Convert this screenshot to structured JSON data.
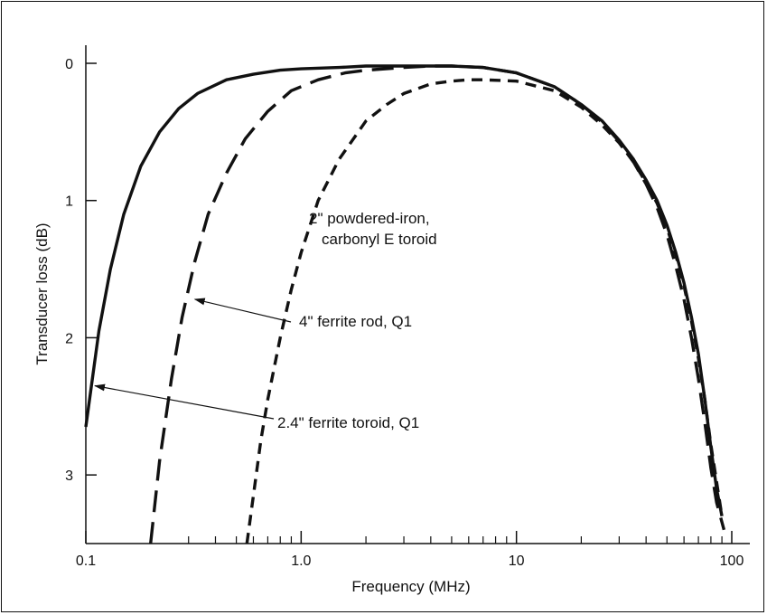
{
  "chart_data": {
    "type": "line",
    "title": "",
    "xlabel": "Frequency (MHz)",
    "ylabel": "Transducer loss (dB)",
    "x_scale": "log",
    "xlim": [
      0.1,
      100
    ],
    "ylim": [
      0,
      3.5
    ],
    "y_inverted": true,
    "grid": false,
    "x_ticks": [
      {
        "value": 0.1,
        "label": "0.1"
      },
      {
        "value": 1.0,
        "label": "1.0"
      },
      {
        "value": 10,
        "label": "10"
      },
      {
        "value": 100,
        "label": "100"
      }
    ],
    "y_ticks": [
      {
        "value": 0,
        "label": "0"
      },
      {
        "value": 1,
        "label": "1"
      },
      {
        "value": 2,
        "label": "2"
      },
      {
        "value": 3,
        "label": "3"
      }
    ],
    "series": [
      {
        "name": "2.4\" ferrite toroid, Q1",
        "style": "solid",
        "x": [
          0.1,
          0.115,
          0.13,
          0.15,
          0.18,
          0.22,
          0.27,
          0.33,
          0.45,
          0.6,
          0.8,
          1.0,
          1.5,
          2,
          3,
          4,
          5,
          7,
          10,
          15,
          20,
          25,
          30,
          35,
          40,
          45,
          50,
          55,
          60,
          65,
          70,
          75,
          80,
          85,
          90
        ],
        "y": [
          2.65,
          1.95,
          1.5,
          1.1,
          0.75,
          0.5,
          0.33,
          0.22,
          0.12,
          0.08,
          0.05,
          0.04,
          0.03,
          0.02,
          0.02,
          0.02,
          0.02,
          0.03,
          0.07,
          0.17,
          0.3,
          0.42,
          0.56,
          0.7,
          0.85,
          1.0,
          1.18,
          1.38,
          1.6,
          1.85,
          2.12,
          2.45,
          2.8,
          3.1,
          3.3
        ]
      },
      {
        "name": "4\" ferrite rod, Q1",
        "style": "long-dash",
        "x": [
          0.2,
          0.22,
          0.25,
          0.28,
          0.32,
          0.37,
          0.45,
          0.55,
          0.7,
          0.9,
          1.2,
          1.6,
          2,
          3,
          4,
          5,
          7,
          10,
          15,
          20,
          25,
          30,
          35,
          40,
          45,
          50,
          55,
          60,
          65,
          70,
          75,
          80,
          85,
          92
        ],
        "y": [
          3.5,
          2.9,
          2.3,
          1.85,
          1.45,
          1.1,
          0.8,
          0.55,
          0.35,
          0.2,
          0.12,
          0.07,
          0.05,
          0.03,
          0.02,
          0.02,
          0.03,
          0.07,
          0.17,
          0.3,
          0.43,
          0.57,
          0.72,
          0.88,
          1.05,
          1.25,
          1.48,
          1.72,
          2.0,
          2.3,
          2.62,
          2.95,
          3.2,
          3.4
        ]
      },
      {
        "name": "2\" powdered-iron, carbonyl E toroid",
        "style": "short-dash",
        "x": [
          0.56,
          0.6,
          0.65,
          0.7,
          0.8,
          0.9,
          1.0,
          1.2,
          1.5,
          2,
          2.5,
          3,
          4,
          5,
          6,
          7,
          10,
          15,
          20,
          25,
          30,
          35,
          40,
          45,
          50,
          55,
          60,
          65,
          70,
          75,
          80,
          85,
          90
        ],
        "y": [
          3.5,
          3.15,
          2.75,
          2.45,
          2.0,
          1.65,
          1.38,
          1.0,
          0.7,
          0.42,
          0.3,
          0.22,
          0.15,
          0.13,
          0.12,
          0.12,
          0.13,
          0.2,
          0.32,
          0.45,
          0.58,
          0.72,
          0.87,
          1.02,
          1.2,
          1.4,
          1.62,
          1.88,
          2.15,
          2.45,
          2.78,
          3.05,
          3.3
        ]
      }
    ],
    "annotations": [
      {
        "text": "2.4\" ferrite toroid, Q1",
        "arrow_to": {
          "x": 0.1,
          "y": 2.35
        }
      },
      {
        "text": "4\" ferrite rod, Q1",
        "arrow_to": {
          "x": 0.3,
          "y": 1.72
        }
      },
      {
        "lines": [
          "2\" powdered-iron,",
          "carbonyl E toroid"
        ]
      }
    ]
  }
}
